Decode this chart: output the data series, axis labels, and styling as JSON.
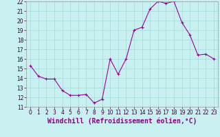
{
  "x": [
    0,
    1,
    2,
    3,
    4,
    5,
    6,
    7,
    8,
    9,
    10,
    11,
    12,
    13,
    14,
    15,
    16,
    17,
    18,
    19,
    20,
    21,
    22,
    23
  ],
  "y": [
    15.3,
    14.2,
    13.9,
    13.9,
    12.7,
    12.2,
    12.2,
    12.3,
    11.4,
    11.8,
    16.0,
    14.4,
    16.0,
    19.0,
    19.3,
    21.2,
    22.0,
    21.8,
    22.0,
    19.8,
    18.5,
    16.4,
    16.5,
    16.0
  ],
  "line_color": "#990099",
  "marker": "+",
  "bg_color": "#c8f0f0",
  "grid_color": "#aadddd",
  "xlabel": "Windchill (Refroidissement éolien,°C)",
  "xlabel_color": "#880088",
  "ylim": [
    11,
    22
  ],
  "xlim": [
    -0.5,
    23.5
  ],
  "yticks": [
    11,
    12,
    13,
    14,
    15,
    16,
    17,
    18,
    19,
    20,
    21,
    22
  ],
  "xticks": [
    0,
    1,
    2,
    3,
    4,
    5,
    6,
    7,
    8,
    9,
    10,
    11,
    12,
    13,
    14,
    15,
    16,
    17,
    18,
    19,
    20,
    21,
    22,
    23
  ],
  "tick_label_size": 5.5,
  "xlabel_fontsize": 7.0
}
